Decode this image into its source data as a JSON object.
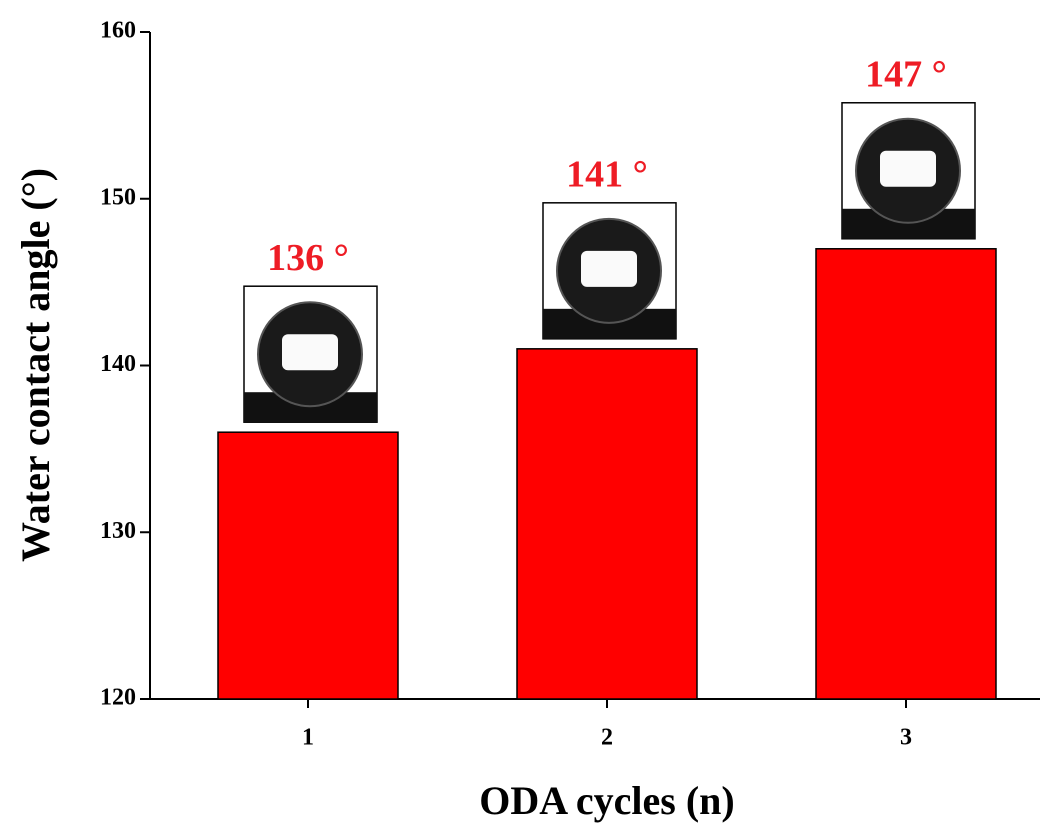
{
  "chart_data": {
    "type": "bar",
    "xlabel": "ODA cycles (n)",
    "ylabel": "Water contact angle (°)",
    "categories": [
      "1",
      "2",
      "3"
    ],
    "values": [
      136,
      141,
      147
    ],
    "value_labels": [
      "136 °",
      "141 °",
      "147 °"
    ],
    "color": "#ff0000",
    "label_color": "#ee1c25",
    "ylim": [
      120,
      160
    ],
    "yticks": [
      120,
      130,
      140,
      150,
      160
    ]
  }
}
